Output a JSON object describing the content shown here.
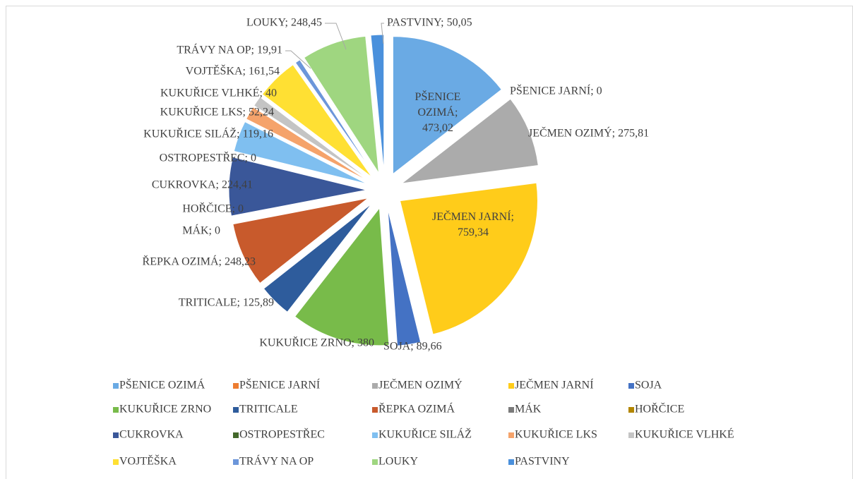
{
  "chart_data": {
    "type": "pie",
    "categories": [
      "PŠENICE OZIMÁ",
      "PŠENICE JARNÍ",
      "JEČMEN OZIMÝ",
      "JEČMEN JARNÍ",
      "SOJA",
      "KUKUŘICE ZRNO",
      "TRITICALE",
      "ŘEPKA OZIMÁ",
      "MÁK",
      "HOŘČICE",
      "CUKROVKA",
      "OSTROPESTŘEC",
      "KUKUŘICE SILÁŽ",
      "KUKUŘICE LKS",
      "KUKUŘICE VLHKÉ",
      "VOJTĚŠKA",
      "TRÁVY NA OP",
      "LOUKY",
      "PASTVINY"
    ],
    "values": [
      473.02,
      0,
      275.81,
      759.34,
      89.66,
      380,
      125.89,
      248.23,
      0,
      0,
      224.41,
      0,
      119.16,
      52.24,
      40,
      161.54,
      19.91,
      248.45,
      50.05
    ],
    "value_labels": [
      "PŠENICE\nOZIMÁ;\n473,02",
      "PŠENICE JARNÍ; 0",
      "JEČMEN OZIMÝ; 275,81",
      "JEČMEN JARNÍ;\n759,34",
      "SOJA; 89,66",
      "KUKUŘICE ZRNO; 380",
      "TRITICALE; 125,89",
      "ŘEPKA OZIMÁ; 248,23",
      "MÁK; 0",
      "HOŘČICE; 0",
      "CUKROVKA; 224,41",
      "OSTROPESTŘEC; 0",
      "KUKUŘICE SILÁŽ; 119,16",
      "KUKUŘICE LKS; 52,24",
      "KUKUŘICE VLHKÉ; 40",
      "VOJTĚŠKA; 161,54",
      "TRÁVY NA OP; 19,91",
      "LOUKY; 248,45",
      "PASTVINY; 50,05"
    ],
    "colors": [
      "#6aaae4",
      "#ed7d31",
      "#ababab",
      "#ffcc1a",
      "#4472c4",
      "#78bb4a",
      "#2e5c9c",
      "#c85a2c",
      "#7a7a7a",
      "#b38600",
      "#3a5799",
      "#43682b",
      "#7fbff0",
      "#f5a36b",
      "#c4c4c4",
      "#ffe033",
      "#6c96da",
      "#9fd680",
      "#4a90dc"
    ],
    "legend": "bottom"
  }
}
